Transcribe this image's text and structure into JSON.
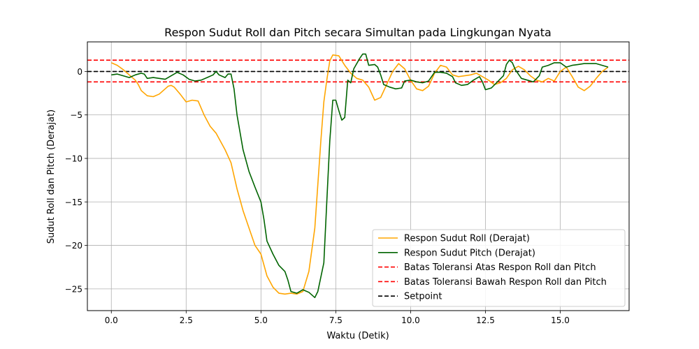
{
  "chart_data": {
    "type": "line",
    "title": "Respon Sudut Roll dan Pitch secara Simultan pada Lingkungan Nyata",
    "xlabel": "Waktu (Detik)",
    "ylabel": "Sudut Roll dan Pitch (Derajat)",
    "xlim": [
      -0.8,
      17.3
    ],
    "ylim": [
      -27.5,
      3.4
    ],
    "x_ticks": [
      0.0,
      2.5,
      5.0,
      7.5,
      10.0,
      12.5,
      15.0
    ],
    "x_tick_labels": [
      "0.0",
      "2.5",
      "5.0",
      "7.5",
      "10.0",
      "12.5",
      "15.0"
    ],
    "y_ticks": [
      0,
      -5,
      -10,
      -15,
      -20,
      -25
    ],
    "y_tick_labels": [
      "0",
      "−5",
      "−10",
      "−15",
      "−20",
      "−25"
    ],
    "grid": true,
    "legend_position": "lower-right",
    "series": [
      {
        "name": "Respon Sudut Roll (Derajat)",
        "color": "#FFA500",
        "style": "solid",
        "points": [
          [
            0.0,
            1.0
          ],
          [
            0.2,
            0.7
          ],
          [
            0.4,
            0.2
          ],
          [
            0.6,
            -0.4
          ],
          [
            0.8,
            -1.0
          ],
          [
            0.9,
            -1.5
          ],
          [
            1.0,
            -2.2
          ],
          [
            1.2,
            -2.8
          ],
          [
            1.4,
            -2.9
          ],
          [
            1.6,
            -2.6
          ],
          [
            1.8,
            -2.0
          ],
          [
            1.9,
            -1.7
          ],
          [
            2.0,
            -1.6
          ],
          [
            2.1,
            -1.8
          ],
          [
            2.3,
            -2.6
          ],
          [
            2.5,
            -3.5
          ],
          [
            2.7,
            -3.3
          ],
          [
            2.9,
            -3.4
          ],
          [
            3.1,
            -5.0
          ],
          [
            3.3,
            -6.3
          ],
          [
            3.5,
            -7.1
          ],
          [
            3.8,
            -9.0
          ],
          [
            4.0,
            -10.5
          ],
          [
            4.2,
            -13.5
          ],
          [
            4.4,
            -16.0
          ],
          [
            4.6,
            -18.0
          ],
          [
            4.8,
            -20.0
          ],
          [
            5.0,
            -21.0
          ],
          [
            5.2,
            -23.5
          ],
          [
            5.4,
            -24.8
          ],
          [
            5.6,
            -25.5
          ],
          [
            5.8,
            -25.6
          ],
          [
            6.0,
            -25.5
          ],
          [
            6.2,
            -25.6
          ],
          [
            6.4,
            -25.3
          ],
          [
            6.6,
            -23.0
          ],
          [
            6.8,
            -18.0
          ],
          [
            7.0,
            -8.0
          ],
          [
            7.1,
            -3.5
          ],
          [
            7.2,
            -1.0
          ],
          [
            7.3,
            1.2
          ],
          [
            7.4,
            1.9
          ],
          [
            7.6,
            1.8
          ],
          [
            7.8,
            0.7
          ],
          [
            8.0,
            -0.2
          ],
          [
            8.2,
            -0.8
          ],
          [
            8.4,
            -1.0
          ],
          [
            8.6,
            -1.8
          ],
          [
            8.8,
            -3.3
          ],
          [
            9.0,
            -3.0
          ],
          [
            9.2,
            -1.5
          ],
          [
            9.4,
            0.0
          ],
          [
            9.6,
            0.9
          ],
          [
            9.8,
            0.3
          ],
          [
            10.0,
            -1.0
          ],
          [
            10.2,
            -2.0
          ],
          [
            10.4,
            -2.2
          ],
          [
            10.6,
            -1.7
          ],
          [
            10.8,
            -0.2
          ],
          [
            11.0,
            0.7
          ],
          [
            11.2,
            0.5
          ],
          [
            11.4,
            -0.4
          ],
          [
            11.6,
            -0.6
          ],
          [
            11.8,
            -0.5
          ],
          [
            12.0,
            -0.4
          ],
          [
            12.2,
            -0.2
          ],
          [
            12.4,
            -0.6
          ],
          [
            12.6,
            -1.0
          ],
          [
            12.8,
            -1.5
          ],
          [
            13.0,
            -1.3
          ],
          [
            13.2,
            -0.8
          ],
          [
            13.4,
            0.2
          ],
          [
            13.6,
            0.6
          ],
          [
            13.8,
            0.2
          ],
          [
            14.0,
            -0.5
          ],
          [
            14.2,
            -1.0
          ],
          [
            14.4,
            -1.2
          ],
          [
            14.6,
            -0.8
          ],
          [
            14.8,
            -1.1
          ],
          [
            15.0,
            0.0
          ],
          [
            15.2,
            0.5
          ],
          [
            15.4,
            -0.6
          ],
          [
            15.6,
            -1.8
          ],
          [
            15.8,
            -2.2
          ],
          [
            16.0,
            -1.7
          ],
          [
            16.2,
            -0.8
          ],
          [
            16.4,
            0.0
          ],
          [
            16.6,
            0.5
          ]
        ]
      },
      {
        "name": "Respon Sudut Pitch (Derajat)",
        "color": "#006400",
        "style": "solid",
        "points": [
          [
            0.0,
            -0.4
          ],
          [
            0.2,
            -0.3
          ],
          [
            0.4,
            -0.5
          ],
          [
            0.6,
            -0.7
          ],
          [
            0.8,
            -0.4
          ],
          [
            1.0,
            -0.2
          ],
          [
            1.1,
            -0.3
          ],
          [
            1.2,
            -0.8
          ],
          [
            1.4,
            -0.7
          ],
          [
            1.6,
            -0.8
          ],
          [
            1.8,
            -0.9
          ],
          [
            2.0,
            -0.5
          ],
          [
            2.2,
            -0.1
          ],
          [
            2.4,
            -0.4
          ],
          [
            2.6,
            -0.9
          ],
          [
            2.8,
            -1.1
          ],
          [
            3.0,
            -1.0
          ],
          [
            3.2,
            -0.7
          ],
          [
            3.4,
            -0.4
          ],
          [
            3.5,
            0.0
          ],
          [
            3.6,
            -0.4
          ],
          [
            3.8,
            -0.7
          ],
          [
            3.9,
            -0.3
          ],
          [
            4.0,
            -0.3
          ],
          [
            4.1,
            -2.0
          ],
          [
            4.2,
            -5.0
          ],
          [
            4.4,
            -9.0
          ],
          [
            4.6,
            -11.5
          ],
          [
            4.8,
            -13.3
          ],
          [
            5.0,
            -15.0
          ],
          [
            5.1,
            -17.0
          ],
          [
            5.2,
            -19.5
          ],
          [
            5.4,
            -21.0
          ],
          [
            5.6,
            -22.3
          ],
          [
            5.8,
            -23.0
          ],
          [
            5.9,
            -24.0
          ],
          [
            6.0,
            -25.3
          ],
          [
            6.2,
            -25.5
          ],
          [
            6.4,
            -25.1
          ],
          [
            6.6,
            -25.4
          ],
          [
            6.8,
            -26.0
          ],
          [
            6.9,
            -25.3
          ],
          [
            7.1,
            -22.0
          ],
          [
            7.2,
            -15.0
          ],
          [
            7.3,
            -8.0
          ],
          [
            7.4,
            -3.3
          ],
          [
            7.5,
            -3.3
          ],
          [
            7.6,
            -4.5
          ],
          [
            7.7,
            -5.6
          ],
          [
            7.8,
            -5.3
          ],
          [
            7.9,
            -1.0
          ],
          [
            8.0,
            -1.3
          ],
          [
            8.1,
            0.3
          ],
          [
            8.3,
            1.5
          ],
          [
            8.4,
            2.0
          ],
          [
            8.5,
            2.0
          ],
          [
            8.6,
            0.7
          ],
          [
            8.8,
            0.8
          ],
          [
            8.9,
            0.5
          ],
          [
            9.0,
            -0.4
          ],
          [
            9.1,
            -1.5
          ],
          [
            9.3,
            -1.8
          ],
          [
            9.5,
            -2.0
          ],
          [
            9.7,
            -1.9
          ],
          [
            9.8,
            -1.1
          ],
          [
            10.0,
            -1.0
          ],
          [
            10.2,
            -1.2
          ],
          [
            10.4,
            -1.3
          ],
          [
            10.6,
            -1.1
          ],
          [
            10.8,
            -0.1
          ],
          [
            11.0,
            -0.1
          ],
          [
            11.2,
            -0.2
          ],
          [
            11.4,
            -0.6
          ],
          [
            11.5,
            -1.3
          ],
          [
            11.7,
            -1.6
          ],
          [
            11.9,
            -1.5
          ],
          [
            12.1,
            -1.0
          ],
          [
            12.3,
            -0.6
          ],
          [
            12.4,
            -1.2
          ],
          [
            12.5,
            -2.1
          ],
          [
            12.7,
            -1.9
          ],
          [
            12.9,
            -1.2
          ],
          [
            13.1,
            -0.5
          ],
          [
            13.2,
            0.8
          ],
          [
            13.3,
            1.3
          ],
          [
            13.4,
            1.0
          ],
          [
            13.5,
            0.2
          ],
          [
            13.7,
            -0.8
          ],
          [
            13.9,
            -1.0
          ],
          [
            14.1,
            -1.2
          ],
          [
            14.3,
            -0.5
          ],
          [
            14.4,
            0.5
          ],
          [
            14.6,
            0.7
          ],
          [
            14.8,
            1.0
          ],
          [
            15.0,
            1.0
          ],
          [
            15.2,
            0.5
          ],
          [
            15.4,
            0.7
          ],
          [
            15.6,
            0.8
          ],
          [
            15.8,
            0.9
          ],
          [
            16.2,
            0.9
          ],
          [
            16.4,
            0.7
          ],
          [
            16.6,
            0.5
          ]
        ]
      },
      {
        "name": "Batas Toleransi Atas Respon Roll dan Pitch",
        "color": "#FF0000",
        "style": "dashed",
        "points": [
          [
            -0.8,
            1.3
          ],
          [
            17.3,
            1.3
          ]
        ]
      },
      {
        "name": "Batas Toleransi Bawah Respon Roll dan Pitch",
        "color": "#FF0000",
        "style": "dashed",
        "points": [
          [
            -0.8,
            -1.2
          ],
          [
            17.3,
            -1.2
          ]
        ]
      },
      {
        "name": "Setpoint",
        "color": "#000000",
        "style": "dashed",
        "points": [
          [
            -0.8,
            0.0
          ],
          [
            17.3,
            0.0
          ]
        ]
      }
    ]
  }
}
